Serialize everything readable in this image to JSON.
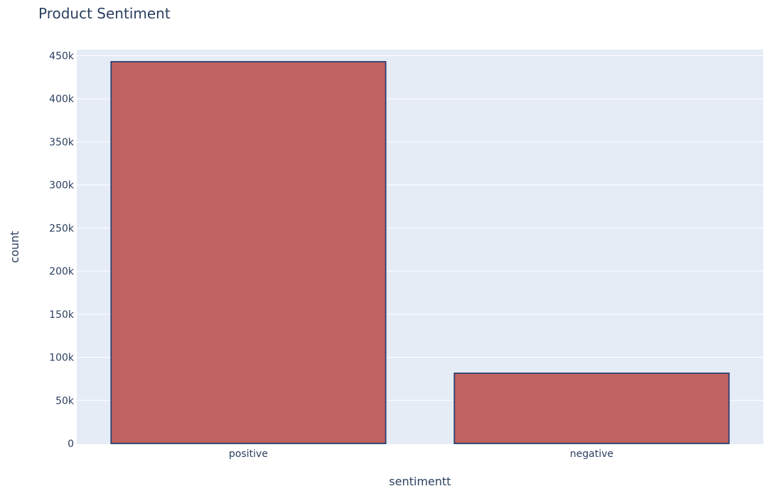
{
  "chart_data": {
    "type": "bar",
    "title": "Product Sentiment",
    "xlabel": "sentimentt",
    "ylabel": "count",
    "categories": [
      "positive",
      "negative"
    ],
    "values": [
      443000,
      81500
    ],
    "ylim": [
      0,
      457000
    ],
    "yticks": [
      0,
      50000,
      100000,
      150000,
      200000,
      250000,
      300000,
      350000,
      400000,
      450000
    ],
    "ytick_labels": [
      "0",
      "50k",
      "100k",
      "150k",
      "200k",
      "250k",
      "300k",
      "350k",
      "400k",
      "450k"
    ],
    "grid": true,
    "legend": "none",
    "colors": {
      "plot_background": "#e5ecf6",
      "bar_fill": "#c0625f",
      "bar_outline": "#2a3f6f",
      "grid": "#ffffff",
      "text": "#2a3f5f"
    }
  }
}
